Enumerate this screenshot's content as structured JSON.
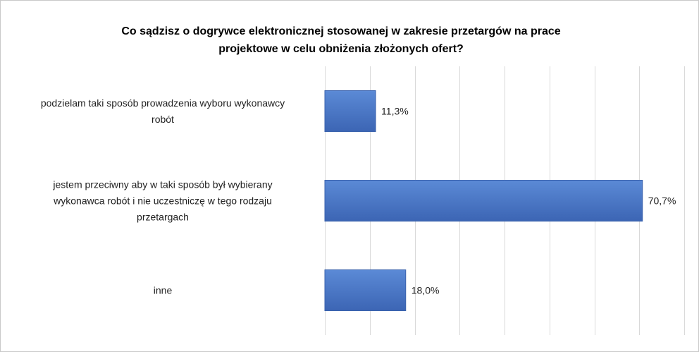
{
  "chart_data": {
    "type": "bar",
    "orientation": "horizontal",
    "title": "Co sądzisz o dogrywce elektronicznej stosowanej w zakresie przetargów na prace projektowe w celu obniżenia złożonych ofert?",
    "title_lines": [
      "Co sądzisz o dogrywce elektronicznej stosowanej w zakresie przetargów na prace",
      "projektowe w celu obniżenia złożonych ofert?"
    ],
    "categories": [
      "podzielam taki sposób prowadzenia wyboru wykonawcy robót",
      "jestem przeciwny aby w taki sposób był wybierany wykonawca robót i nie uczestniczę w tego rodzaju przetargach",
      "inne"
    ],
    "category_lines": [
      [
        "podzielam taki sposób prowadzenia wyboru wykonawcy",
        "robót"
      ],
      [
        "jestem przeciwny aby w taki sposób był wybierany",
        "wykonawca robót i nie uczestniczę w tego rodzaju",
        "przetargach"
      ],
      [
        "inne"
      ]
    ],
    "values": [
      11.3,
      70.7,
      18.0
    ],
    "value_labels": [
      "11,3%",
      "70,7%",
      "18,0%"
    ],
    "unit": "%",
    "xlim": [
      0,
      80
    ],
    "grid": true,
    "legend": "none",
    "colors": {
      "bar": "#4472c4",
      "bar_edge": "#3a62ad",
      "grid": "#d9d9d9",
      "border": "#c9c9c9"
    }
  }
}
